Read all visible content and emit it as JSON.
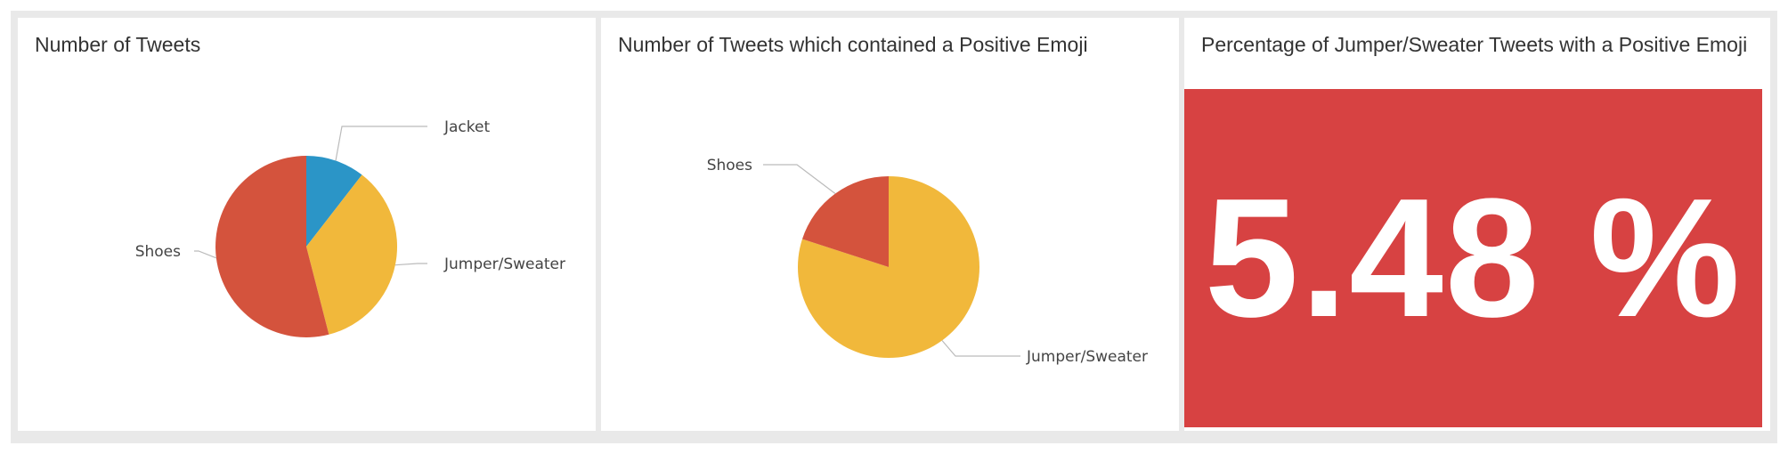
{
  "panels": [
    {
      "title": "Number of Tweets"
    },
    {
      "title": "Number of Tweets which contained a Positive Emoji"
    },
    {
      "title": "Percentage of Jumper/Sweater Tweets with a Positive Emoji"
    }
  ],
  "colors": {
    "red": "#d4533d",
    "blue": "#2b95c7",
    "yellow": "#f1b83b",
    "kpi_bg": "#d74242"
  },
  "kpi": {
    "value": "5.48 %"
  },
  "chart_data": [
    {
      "type": "pie",
      "title": "Number of Tweets",
      "slices": [
        {
          "label": "Jacket",
          "value": 10.5,
          "color": "#2b95c7"
        },
        {
          "label": "Jumper/Sweater",
          "value": 35.5,
          "color": "#f1b83b"
        },
        {
          "label": "Shoes",
          "value": 54,
          "color": "#d4533d"
        }
      ]
    },
    {
      "type": "pie",
      "title": "Number of Tweets which contained a Positive Emoji",
      "slices": [
        {
          "label": "Jumper/Sweater",
          "value": 80,
          "color": "#f1b83b"
        },
        {
          "label": "Shoes",
          "value": 20,
          "color": "#d4533d"
        }
      ]
    }
  ]
}
